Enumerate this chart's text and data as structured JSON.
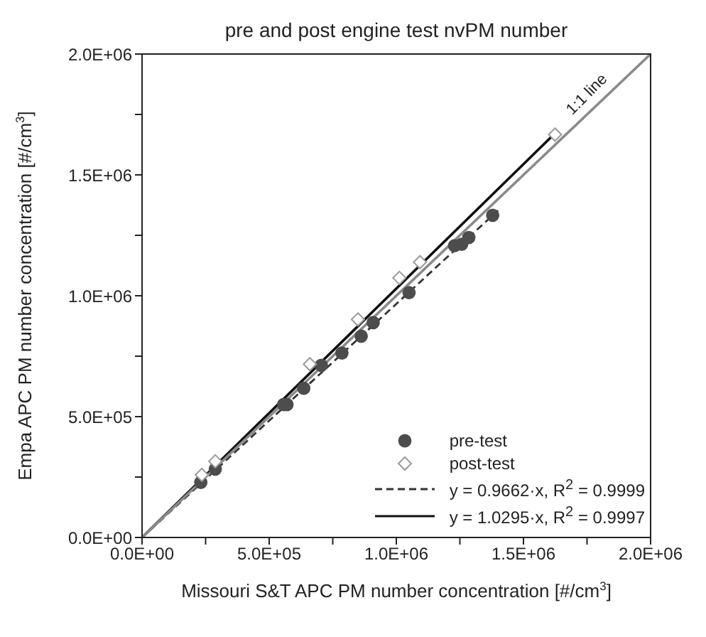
{
  "chart_data": {
    "type": "scatter",
    "title": "pre and post engine test nvPM number",
    "xlabel": "Missouri S&T APC PM number concentration [#/cm$^{3}$]",
    "ylabel": "Empa APC PM number concentration [#/cm$^{3}$]",
    "xlim": [
      0,
      2000000
    ],
    "ylim": [
      0,
      2000000
    ],
    "xticks": [
      {
        "value": 0,
        "label": "0.0E+00"
      },
      {
        "value": 250000,
        "label": null
      },
      {
        "value": 500000,
        "label": "5.0E+05"
      },
      {
        "value": 750000,
        "label": null
      },
      {
        "value": 1000000,
        "label": "1.0E+06"
      },
      {
        "value": 1250000,
        "label": null
      },
      {
        "value": 1500000,
        "label": "1.5E+06"
      },
      {
        "value": 1750000,
        "label": null
      },
      {
        "value": 2000000,
        "label": "2.0E+06"
      }
    ],
    "yticks": [
      {
        "value": 0,
        "label": "0.0E+00"
      },
      {
        "value": 250000,
        "label": null
      },
      {
        "value": 500000,
        "label": "5.0E+05"
      },
      {
        "value": 750000,
        "label": null
      },
      {
        "value": 1000000,
        "label": "1.0E+06"
      },
      {
        "value": 1250000,
        "label": null
      },
      {
        "value": 1500000,
        "label": "1.5E+06"
      },
      {
        "value": 1750000,
        "label": null
      },
      {
        "value": 2000000,
        "label": "2.0E+06"
      }
    ],
    "grid": false,
    "legend": "bottom right",
    "series": [
      {
        "name": "pre-test",
        "marker": "circle",
        "color": "#4d4d4d",
        "x": [
          231000,
          288000,
          557000,
          570000,
          636000,
          705000,
          786000,
          862000,
          909000,
          1050000,
          1229000,
          1257000,
          1285000,
          1379000
        ],
        "values": [
          228000,
          283000,
          550000,
          550000,
          617000,
          712000,
          763000,
          833000,
          889000,
          1013000,
          1207000,
          1213000,
          1241000,
          1333000
        ]
      },
      {
        "name": "post-test",
        "marker": "diamond",
        "color": "#9a9a9a",
        "x": [
          235000,
          288000,
          660000,
          849000,
          1012000,
          1093000,
          1624000
        ],
        "values": [
          259000,
          315000,
          717000,
          902000,
          1074000,
          1139000,
          1667000
        ]
      },
      {
        "name": "y = 0.9662·x, R$^{2}$ = 0.9999",
        "type": "line",
        "marker": "none",
        "line_style": "dashed",
        "color": "#333333",
        "x": [
          0,
          1400000
        ],
        "values": [
          0,
          1353000
        ]
      },
      {
        "name": "y = 1.0295·x, R$^{2}$ = 0.9997",
        "type": "line",
        "marker": "none",
        "line_style": "solid",
        "color": "#111111",
        "x": [
          0,
          1620000
        ],
        "values": [
          0,
          1668000
        ]
      },
      {
        "type": "line",
        "marker": "none",
        "line_style": "solid",
        "color": "#8a8a8a",
        "x": [
          0,
          2000000
        ],
        "values": [
          0,
          2000000
        ]
      }
    ],
    "annotations": [
      {
        "text": "1:1 line",
        "x": 1790000,
        "y": 1790000
      }
    ]
  }
}
